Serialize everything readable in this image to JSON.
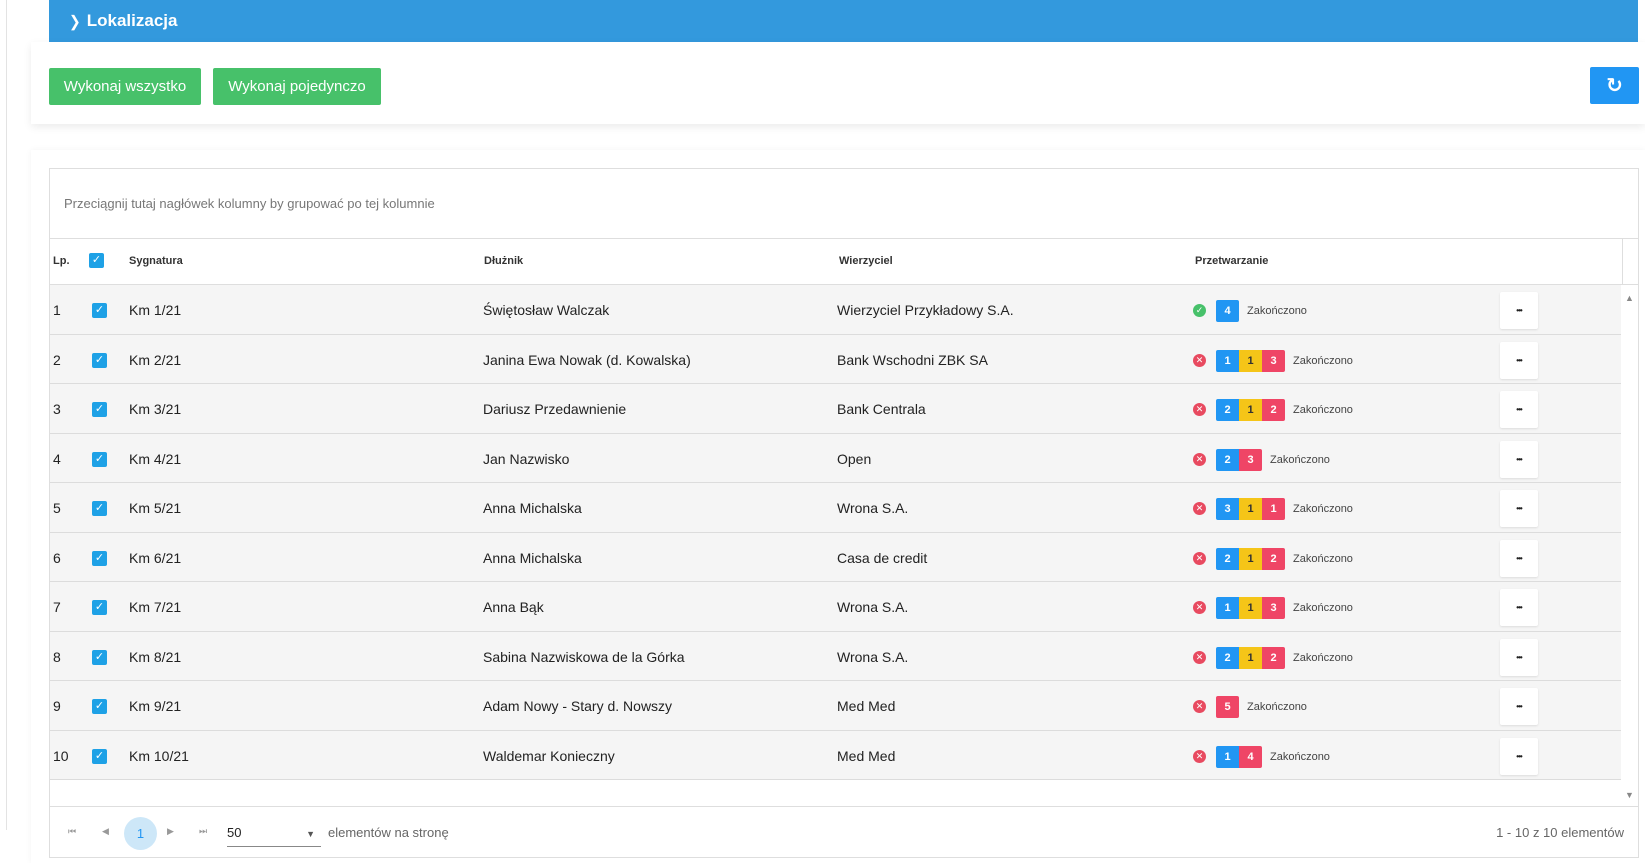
{
  "section": {
    "title": "Lokalizacja"
  },
  "actions": {
    "execute_all": "Wykonaj wszystko",
    "execute_single": "Wykonaj pojedynczo",
    "refresh_icon": "refresh-icon"
  },
  "grid": {
    "group_hint": "Przeciągnij tutaj nagłówek kolumny by grupować po tej kolumnie",
    "columns": {
      "lp": "Lp.",
      "sygnatura": "Sygnatura",
      "dluznik": "Dłużnik",
      "wierzyciel": "Wierzyciel",
      "przetwarzanie": "Przetwarzanie"
    },
    "rows": [
      {
        "lp": "1",
        "sygnatura": "Km 1/21",
        "dluznik": "Świętosław Walczak",
        "wierzyciel": "Wierzyciel Przykładowy S.A.",
        "status": "ok",
        "counts": {
          "blue": "4",
          "yellow": "",
          "red": ""
        },
        "status_text": "Zakończono"
      },
      {
        "lp": "2",
        "sygnatura": "Km 2/21",
        "dluznik": "Janina Ewa Nowak (d. Kowalska)",
        "wierzyciel": "Bank Wschodni ZBK SA",
        "status": "error",
        "counts": {
          "blue": "1",
          "yellow": "1",
          "red": "3"
        },
        "status_text": "Zakończono"
      },
      {
        "lp": "3",
        "sygnatura": "Km 3/21",
        "dluznik": "Dariusz Przedawnienie",
        "wierzyciel": "Bank Centrala",
        "status": "error",
        "counts": {
          "blue": "2",
          "yellow": "1",
          "red": "2"
        },
        "status_text": "Zakończono"
      },
      {
        "lp": "4",
        "sygnatura": "Km 4/21",
        "dluznik": "Jan Nazwisko",
        "wierzyciel": "Open",
        "status": "error",
        "counts": {
          "blue": "2",
          "yellow": "",
          "red": "3"
        },
        "status_text": "Zakończono"
      },
      {
        "lp": "5",
        "sygnatura": "Km 5/21",
        "dluznik": "Anna Michalska",
        "wierzyciel": "Wrona S.A.",
        "status": "error",
        "counts": {
          "blue": "3",
          "yellow": "1",
          "red": "1"
        },
        "status_text": "Zakończono"
      },
      {
        "lp": "6",
        "sygnatura": "Km 6/21",
        "dluznik": "Anna Michalska",
        "wierzyciel": "Casa de credit",
        "status": "error",
        "counts": {
          "blue": "2",
          "yellow": "1",
          "red": "2"
        },
        "status_text": "Zakończono"
      },
      {
        "lp": "7",
        "sygnatura": "Km 7/21",
        "dluznik": "Anna Bąk",
        "wierzyciel": "Wrona S.A.",
        "status": "error",
        "counts": {
          "blue": "1",
          "yellow": "1",
          "red": "3"
        },
        "status_text": "Zakończono"
      },
      {
        "lp": "8",
        "sygnatura": "Km 8/21",
        "dluznik": "Sabina Nazwiskowa de la Górka",
        "wierzyciel": "Wrona S.A.",
        "status": "error",
        "counts": {
          "blue": "2",
          "yellow": "1",
          "red": "2"
        },
        "status_text": "Zakończono"
      },
      {
        "lp": "9",
        "sygnatura": "Km 9/21",
        "dluznik": "Adam Nowy - Stary d. Nowszy",
        "wierzyciel": "Med Med",
        "status": "error",
        "counts": {
          "blue": "",
          "yellow": "",
          "red": "5"
        },
        "status_text": "Zakończono"
      },
      {
        "lp": "10",
        "sygnatura": "Km 10/21",
        "dluznik": "Waldemar Konieczny",
        "wierzyciel": "Med Med",
        "status": "error",
        "counts": {
          "blue": "1",
          "yellow": "",
          "red": "4"
        },
        "status_text": "Zakończono"
      }
    ]
  },
  "pager": {
    "current_page": "1",
    "page_size": "50",
    "page_size_label": "elementów na stronę",
    "info": "1 - 10 z 10 elementów"
  },
  "colors": {
    "header": "#3399dd",
    "green": "#47c16a",
    "blue": "#2196f3",
    "yellow": "#f5c518",
    "red": "#ef4566"
  }
}
